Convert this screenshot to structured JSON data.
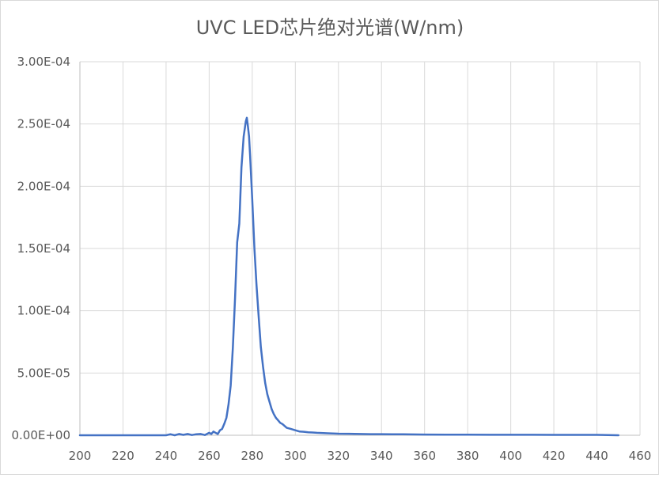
{
  "chart_data": {
    "type": "line",
    "title": "UVC LED芯片绝对光谱(W/nm)",
    "xlabel": "",
    "ylabel": "",
    "xlim": [
      200,
      450
    ],
    "ylim": [
      0,
      0.0003
    ],
    "x_ticks": [
      200,
      220,
      240,
      260,
      280,
      300,
      320,
      340,
      360,
      380,
      400,
      420,
      440,
      460
    ],
    "x_tick_labels": [
      "200",
      "220",
      "240",
      "260",
      "280",
      "300",
      "320",
      "340",
      "360",
      "380",
      "400",
      "420",
      "440",
      "460"
    ],
    "y_ticks": [
      0,
      5e-05,
      0.0001,
      0.00015,
      0.0002,
      0.00025,
      0.0003
    ],
    "y_tick_labels": [
      "0.00E+00",
      "5.00E-05",
      "1.00E-04",
      "1.50E-04",
      "2.00E-04",
      "2.50E-04",
      "3.00E-04"
    ],
    "grid": true,
    "legend": "none",
    "series": [
      {
        "color": "#4472c4",
        "x": [
          200,
          240,
          242,
          244,
          246,
          248,
          250,
          252,
          254,
          256,
          258,
          260,
          261,
          262,
          263,
          264,
          265,
          266,
          267,
          268,
          269,
          270,
          271,
          272,
          273,
          274,
          275,
          276,
          277,
          277.5,
          278,
          278.5,
          279,
          280,
          281,
          282,
          283,
          284,
          285,
          286,
          287,
          288,
          289,
          290,
          291,
          292,
          293,
          294,
          295,
          296,
          298,
          300,
          302,
          304,
          306,
          308,
          310,
          315,
          320,
          325,
          330,
          335,
          340,
          345,
          350,
          360,
          370,
          380,
          390,
          400,
          410,
          420,
          430,
          440,
          450
        ],
        "y": [
          0.0,
          0.0,
          8e-07,
          0.0,
          1e-06,
          3e-07,
          1e-06,
          2e-07,
          8e-07,
          1e-06,
          2e-07,
          2e-06,
          1e-06,
          3e-06,
          2e-06,
          1e-06,
          4e-06,
          5e-06,
          9e-06,
          1.4e-05,
          2.5e-05,
          4e-05,
          7e-05,
          0.00011,
          0.000155,
          0.00017,
          0.000215,
          0.00024,
          0.000252,
          0.000255,
          0.000248,
          0.00024,
          0.000225,
          0.00019,
          0.00015,
          0.00012,
          9.5e-05,
          7.1e-05,
          5.5e-05,
          4.2e-05,
          3.3e-05,
          2.7e-05,
          2.1e-05,
          1.7e-05,
          1.4e-05,
          1.2e-05,
          1e-05,
          9e-06,
          7.5e-06,
          6e-06,
          5e-06,
          4e-06,
          3e-06,
          2.8e-06,
          2.4e-06,
          2.2e-06,
          2e-06,
          1.6e-06,
          1.3e-06,
          1.2e-06,
          1e-06,
          9e-07,
          9e-07,
          8e-07,
          8e-07,
          6e-07,
          5e-07,
          5e-07,
          4e-07,
          4e-07,
          4e-07,
          3e-07,
          3e-07,
          3e-07,
          0.0
        ]
      }
    ]
  }
}
